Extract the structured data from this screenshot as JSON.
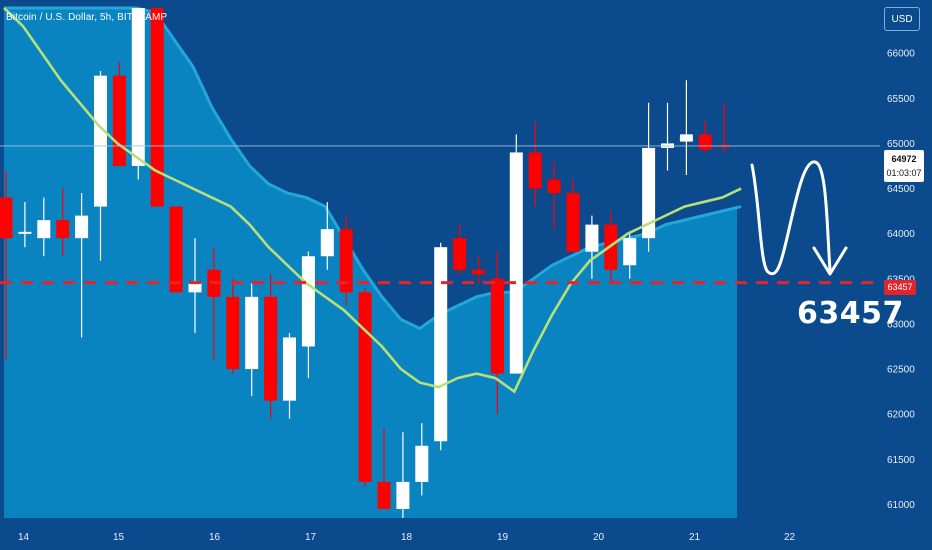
{
  "header": {
    "title": "Bitcoin / U.S. Dollar, 5h, BITSTAMP",
    "currency_button": "USD"
  },
  "current_price": {
    "value": "64972",
    "countdown": "01:03:07"
  },
  "level": {
    "value": "63457",
    "label": "63457"
  },
  "colors": {
    "background": "#0b4a8c",
    "cloud_fill": "#0a8ac6",
    "cloud_edge": "#23a6d8",
    "bull": "#ffffff",
    "bear": "#ff0000",
    "ma_line": "#b7e07a",
    "level_line": "#e3242b"
  },
  "chart_data": {
    "type": "candlestick",
    "title": "Bitcoin / U.S. Dollar, 5h, BITSTAMP",
    "y_ticks": [
      61000,
      61500,
      62000,
      62500,
      63000,
      63500,
      64000,
      64500,
      65000,
      65500,
      66000
    ],
    "ylim": [
      60850,
      66500
    ],
    "x_ticks": [
      "14",
      "15",
      "16",
      "17",
      "18",
      "19",
      "20",
      "21",
      "22"
    ],
    "candles": [
      {
        "o": 64400,
        "h": 64700,
        "l": 62600,
        "c": 63950
      },
      {
        "o": 64000,
        "h": 64350,
        "l": 63850,
        "c": 64020
      },
      {
        "o": 63950,
        "h": 64400,
        "l": 63750,
        "c": 64150
      },
      {
        "o": 64150,
        "h": 64500,
        "l": 63750,
        "c": 63950
      },
      {
        "o": 63950,
        "h": 64450,
        "l": 62850,
        "c": 64200
      },
      {
        "o": 64300,
        "h": 65800,
        "l": 63700,
        "c": 65750
      },
      {
        "o": 65750,
        "h": 65900,
        "l": 64750,
        "c": 64750
      },
      {
        "o": 64750,
        "h": 66500,
        "l": 64600,
        "c": 66500
      },
      {
        "o": 66500,
        "h": 66500,
        "l": 64300,
        "c": 64300
      },
      {
        "o": 64300,
        "h": 64300,
        "l": 63350,
        "c": 63350
      },
      {
        "o": 63350,
        "h": 63950,
        "l": 62900,
        "c": 63450
      },
      {
        "o": 63600,
        "h": 63850,
        "l": 62600,
        "c": 63300
      },
      {
        "o": 63300,
        "h": 63500,
        "l": 62450,
        "c": 62500
      },
      {
        "o": 62500,
        "h": 63450,
        "l": 62200,
        "c": 63300
      },
      {
        "o": 63300,
        "h": 63550,
        "l": 61950,
        "c": 62150
      },
      {
        "o": 62150,
        "h": 62900,
        "l": 61950,
        "c": 62850
      },
      {
        "o": 62750,
        "h": 63800,
        "l": 62400,
        "c": 63750
      },
      {
        "o": 63750,
        "h": 64350,
        "l": 63600,
        "c": 64050
      },
      {
        "o": 64050,
        "h": 64200,
        "l": 63200,
        "c": 63350
      },
      {
        "o": 63350,
        "h": 63400,
        "l": 61200,
        "c": 61250
      },
      {
        "o": 61250,
        "h": 61850,
        "l": 60950,
        "c": 60950
      },
      {
        "o": 60950,
        "h": 61800,
        "l": 60850,
        "c": 61250
      },
      {
        "o": 61250,
        "h": 61900,
        "l": 61100,
        "c": 61650
      },
      {
        "o": 61700,
        "h": 63900,
        "l": 61600,
        "c": 63850
      },
      {
        "o": 63950,
        "h": 64100,
        "l": 63550,
        "c": 63600
      },
      {
        "o": 63600,
        "h": 63750,
        "l": 63450,
        "c": 63550
      },
      {
        "o": 63500,
        "h": 63800,
        "l": 62000,
        "c": 62450
      },
      {
        "o": 62450,
        "h": 65100,
        "l": 62450,
        "c": 64900
      },
      {
        "o": 64900,
        "h": 65250,
        "l": 64300,
        "c": 64500
      },
      {
        "o": 64600,
        "h": 64800,
        "l": 64050,
        "c": 64450
      },
      {
        "o": 64450,
        "h": 64600,
        "l": 63800,
        "c": 63800
      },
      {
        "o": 63800,
        "h": 64200,
        "l": 63500,
        "c": 64100
      },
      {
        "o": 64100,
        "h": 64250,
        "l": 63450,
        "c": 63600
      },
      {
        "o": 63650,
        "h": 64000,
        "l": 63500,
        "c": 63950
      },
      {
        "o": 63950,
        "h": 65450,
        "l": 63800,
        "c": 64950
      },
      {
        "o": 64950,
        "h": 65450,
        "l": 64700,
        "c": 65000
      },
      {
        "o": 65020,
        "h": 65700,
        "l": 64650,
        "c": 65100
      },
      {
        "o": 65100,
        "h": 65250,
        "l": 64900,
        "c": 64930
      },
      {
        "o": 64980,
        "h": 65450,
        "l": 64900,
        "c": 64972
      }
    ],
    "ma_line": [
      66500,
      66300,
      66000,
      65700,
      65450,
      65200,
      65000,
      64850,
      64700,
      64600,
      64500,
      64400,
      64300,
      64100,
      63850,
      63650,
      63450,
      63300,
      63150,
      62950,
      62750,
      62500,
      62350,
      62300,
      62400,
      62450,
      62400,
      62250,
      62700,
      63100,
      63450,
      63700,
      63850,
      64000,
      64100,
      64200,
      64300,
      64350,
      64400,
      64500
    ],
    "cloud_upper": [
      66500,
      66500,
      66500,
      66500,
      66500,
      66500,
      66500,
      66500,
      66450,
      66150,
      65850,
      65400,
      65050,
      64750,
      64550,
      64450,
      64400,
      64300,
      63950,
      63600,
      63300,
      63050,
      62950,
      63100,
      63200,
      63300,
      63350,
      63350,
      63500,
      63650,
      63750,
      63850,
      63900,
      63950,
      64000,
      64100,
      64150,
      64200,
      64250,
      64300
    ],
    "level": 63457,
    "current_price": 64972
  }
}
